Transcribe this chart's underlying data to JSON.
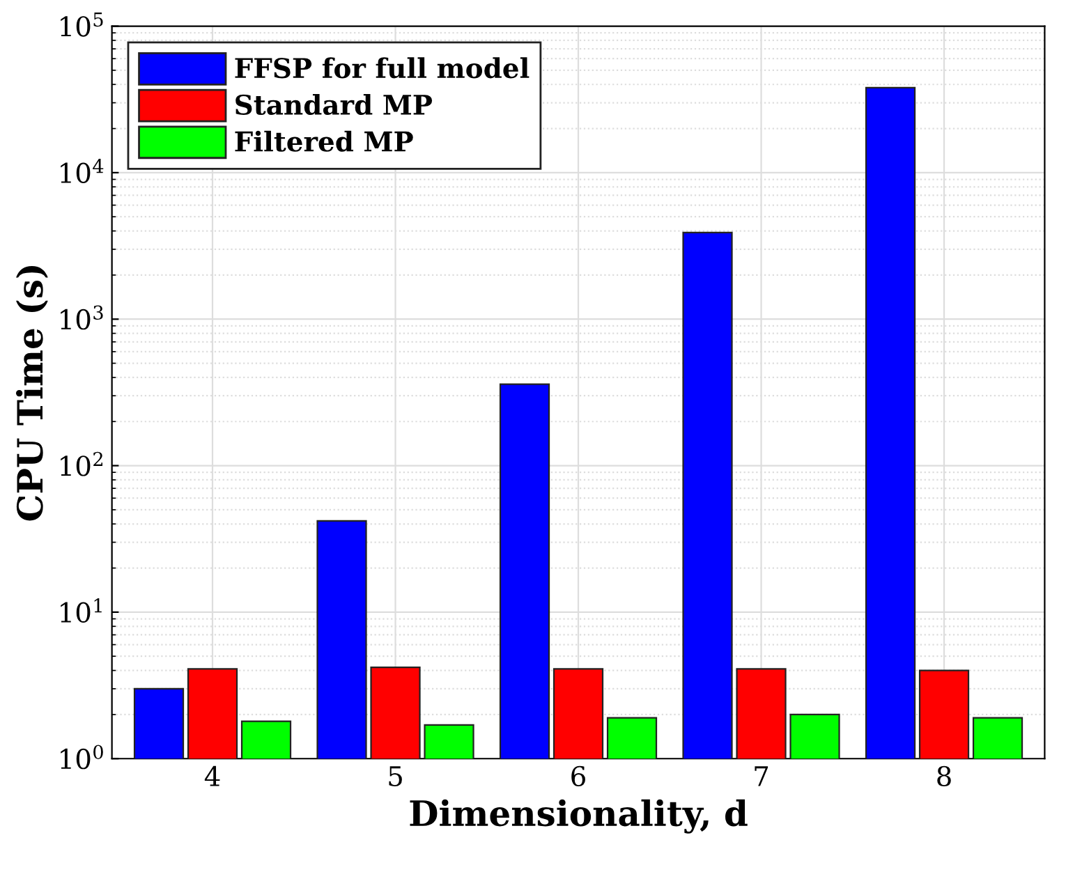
{
  "chart_data": {
    "type": "bar",
    "xlabel": "Dimensionality, d",
    "ylabel": "CPU Time (s)",
    "categories": [
      "4",
      "5",
      "6",
      "7",
      "8"
    ],
    "series": [
      {
        "name": "FFSP for full model",
        "color": "#0000ff",
        "values": [
          3,
          42,
          360,
          3900,
          38000
        ]
      },
      {
        "name": "Standard MP",
        "color": "#ff0000",
        "values": [
          4.1,
          4.2,
          4.1,
          4.1,
          4.0
        ]
      },
      {
        "name": "Filtered MP",
        "color": "#00ff00",
        "values": [
          1.8,
          1.7,
          1.9,
          2.0,
          1.9
        ]
      }
    ],
    "log": "y",
    "ylim": [
      1,
      100000
    ],
    "yticks": [
      {
        "value": 1,
        "label": "10$^{0}$"
      },
      {
        "value": 10,
        "label": "10$^{1}$"
      },
      {
        "value": 100,
        "label": "10$^{2}$"
      },
      {
        "value": 1000,
        "label": "10$^{3}$"
      },
      {
        "value": 10000,
        "label": "10$^{4}$"
      },
      {
        "value": 100000,
        "label": "10$^{5}$"
      }
    ],
    "grid": true,
    "legend": "top left"
  }
}
